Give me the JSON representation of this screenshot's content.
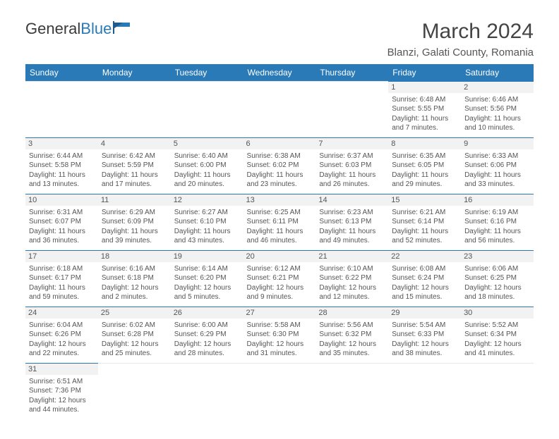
{
  "brand": {
    "name1": "General",
    "name2": "Blue"
  },
  "title": "March 2024",
  "location": "Blanzi, Galati County, Romania",
  "colors": {
    "accent": "#2a7ab8",
    "header_text": "#ffffff",
    "body_text": "#555555",
    "grid_bg": "#f2f2f2"
  },
  "weekdays": [
    "Sunday",
    "Monday",
    "Tuesday",
    "Wednesday",
    "Thursday",
    "Friday",
    "Saturday"
  ],
  "weeks": [
    [
      null,
      null,
      null,
      null,
      null,
      {
        "n": "1",
        "sr": "Sunrise: 6:48 AM",
        "ss": "Sunset: 5:55 PM",
        "dl": "Daylight: 11 hours and 7 minutes."
      },
      {
        "n": "2",
        "sr": "Sunrise: 6:46 AM",
        "ss": "Sunset: 5:56 PM",
        "dl": "Daylight: 11 hours and 10 minutes."
      }
    ],
    [
      {
        "n": "3",
        "sr": "Sunrise: 6:44 AM",
        "ss": "Sunset: 5:58 PM",
        "dl": "Daylight: 11 hours and 13 minutes."
      },
      {
        "n": "4",
        "sr": "Sunrise: 6:42 AM",
        "ss": "Sunset: 5:59 PM",
        "dl": "Daylight: 11 hours and 17 minutes."
      },
      {
        "n": "5",
        "sr": "Sunrise: 6:40 AM",
        "ss": "Sunset: 6:00 PM",
        "dl": "Daylight: 11 hours and 20 minutes."
      },
      {
        "n": "6",
        "sr": "Sunrise: 6:38 AM",
        "ss": "Sunset: 6:02 PM",
        "dl": "Daylight: 11 hours and 23 minutes."
      },
      {
        "n": "7",
        "sr": "Sunrise: 6:37 AM",
        "ss": "Sunset: 6:03 PM",
        "dl": "Daylight: 11 hours and 26 minutes."
      },
      {
        "n": "8",
        "sr": "Sunrise: 6:35 AM",
        "ss": "Sunset: 6:05 PM",
        "dl": "Daylight: 11 hours and 29 minutes."
      },
      {
        "n": "9",
        "sr": "Sunrise: 6:33 AM",
        "ss": "Sunset: 6:06 PM",
        "dl": "Daylight: 11 hours and 33 minutes."
      }
    ],
    [
      {
        "n": "10",
        "sr": "Sunrise: 6:31 AM",
        "ss": "Sunset: 6:07 PM",
        "dl": "Daylight: 11 hours and 36 minutes."
      },
      {
        "n": "11",
        "sr": "Sunrise: 6:29 AM",
        "ss": "Sunset: 6:09 PM",
        "dl": "Daylight: 11 hours and 39 minutes."
      },
      {
        "n": "12",
        "sr": "Sunrise: 6:27 AM",
        "ss": "Sunset: 6:10 PM",
        "dl": "Daylight: 11 hours and 43 minutes."
      },
      {
        "n": "13",
        "sr": "Sunrise: 6:25 AM",
        "ss": "Sunset: 6:11 PM",
        "dl": "Daylight: 11 hours and 46 minutes."
      },
      {
        "n": "14",
        "sr": "Sunrise: 6:23 AM",
        "ss": "Sunset: 6:13 PM",
        "dl": "Daylight: 11 hours and 49 minutes."
      },
      {
        "n": "15",
        "sr": "Sunrise: 6:21 AM",
        "ss": "Sunset: 6:14 PM",
        "dl": "Daylight: 11 hours and 52 minutes."
      },
      {
        "n": "16",
        "sr": "Sunrise: 6:19 AM",
        "ss": "Sunset: 6:16 PM",
        "dl": "Daylight: 11 hours and 56 minutes."
      }
    ],
    [
      {
        "n": "17",
        "sr": "Sunrise: 6:18 AM",
        "ss": "Sunset: 6:17 PM",
        "dl": "Daylight: 11 hours and 59 minutes."
      },
      {
        "n": "18",
        "sr": "Sunrise: 6:16 AM",
        "ss": "Sunset: 6:18 PM",
        "dl": "Daylight: 12 hours and 2 minutes."
      },
      {
        "n": "19",
        "sr": "Sunrise: 6:14 AM",
        "ss": "Sunset: 6:20 PM",
        "dl": "Daylight: 12 hours and 5 minutes."
      },
      {
        "n": "20",
        "sr": "Sunrise: 6:12 AM",
        "ss": "Sunset: 6:21 PM",
        "dl": "Daylight: 12 hours and 9 minutes."
      },
      {
        "n": "21",
        "sr": "Sunrise: 6:10 AM",
        "ss": "Sunset: 6:22 PM",
        "dl": "Daylight: 12 hours and 12 minutes."
      },
      {
        "n": "22",
        "sr": "Sunrise: 6:08 AM",
        "ss": "Sunset: 6:24 PM",
        "dl": "Daylight: 12 hours and 15 minutes."
      },
      {
        "n": "23",
        "sr": "Sunrise: 6:06 AM",
        "ss": "Sunset: 6:25 PM",
        "dl": "Daylight: 12 hours and 18 minutes."
      }
    ],
    [
      {
        "n": "24",
        "sr": "Sunrise: 6:04 AM",
        "ss": "Sunset: 6:26 PM",
        "dl": "Daylight: 12 hours and 22 minutes."
      },
      {
        "n": "25",
        "sr": "Sunrise: 6:02 AM",
        "ss": "Sunset: 6:28 PM",
        "dl": "Daylight: 12 hours and 25 minutes."
      },
      {
        "n": "26",
        "sr": "Sunrise: 6:00 AM",
        "ss": "Sunset: 6:29 PM",
        "dl": "Daylight: 12 hours and 28 minutes."
      },
      {
        "n": "27",
        "sr": "Sunrise: 5:58 AM",
        "ss": "Sunset: 6:30 PM",
        "dl": "Daylight: 12 hours and 31 minutes."
      },
      {
        "n": "28",
        "sr": "Sunrise: 5:56 AM",
        "ss": "Sunset: 6:32 PM",
        "dl": "Daylight: 12 hours and 35 minutes."
      },
      {
        "n": "29",
        "sr": "Sunrise: 5:54 AM",
        "ss": "Sunset: 6:33 PM",
        "dl": "Daylight: 12 hours and 38 minutes."
      },
      {
        "n": "30",
        "sr": "Sunrise: 5:52 AM",
        "ss": "Sunset: 6:34 PM",
        "dl": "Daylight: 12 hours and 41 minutes."
      }
    ],
    [
      {
        "n": "31",
        "sr": "Sunrise: 6:51 AM",
        "ss": "Sunset: 7:36 PM",
        "dl": "Daylight: 12 hours and 44 minutes."
      },
      null,
      null,
      null,
      null,
      null,
      null
    ]
  ]
}
